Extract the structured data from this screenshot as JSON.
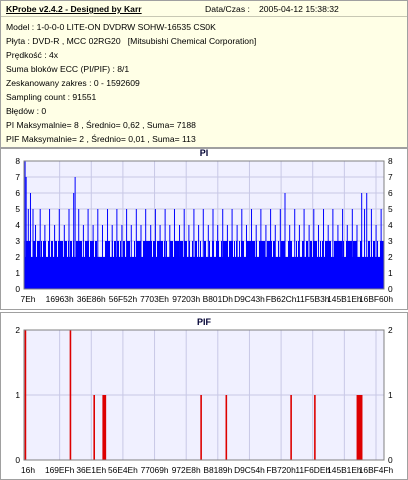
{
  "header": {
    "app_title": "KProbe v2.4.2 - Designed by Karr",
    "date_label": "Data/Czas :",
    "date_value": "2005-04-12 15:38:32"
  },
  "info_lines": [
    "Model : 1-0-0-0 LITE-ON DVDRW SOHW-16535 CS0K",
    "Płyta : DVD-R , MCC 02RG20   [Mitsubishi Chemical Corporation]",
    "Prędkość : 4x",
    "Suma bloków ECC (PI/PIF) : 8/1",
    "Zeskanowany zakres : 0 - 1592609",
    "Sampling count : 91551",
    "Błędów : 0",
    "PI Maksymalnie= 8 , Średnio= 0,62 , Suma= 7188",
    "PIF Maksymalnie= 2 , Średnio= 0,01 , Suma= 113"
  ],
  "colors": {
    "plot_background": "#f0f0ff",
    "grid": "#c8c8e6",
    "pi_bars": "#0000ff",
    "pif_bars": "#dd0000"
  },
  "chart_data": [
    {
      "type": "bar",
      "title": "PI",
      "ylim": [
        0,
        8
      ],
      "y_ticks": [
        "0",
        "1",
        "2",
        "3",
        "4",
        "5",
        "6",
        "7",
        "8"
      ],
      "x_tick_labels": [
        "7Eh",
        "16963h",
        "36E86h",
        "56F52h",
        "7703Eh",
        "97203h",
        "B801Dh",
        "D9C43h",
        "FB62Ch",
        "11F5B3h",
        "145B1Eh",
        "16BF60h"
      ],
      "grid": true,
      "baseline_level": 2,
      "frequent_level": 3,
      "peaks": [
        {
          "x": 0.003,
          "value": 8
        },
        {
          "x": 0.006,
          "value": 7
        },
        {
          "x": 0.012,
          "value": 5
        },
        {
          "x": 0.018,
          "value": 6
        },
        {
          "x": 0.025,
          "value": 5
        },
        {
          "x": 0.032,
          "value": 4
        },
        {
          "x": 0.045,
          "value": 5
        },
        {
          "x": 0.058,
          "value": 4
        },
        {
          "x": 0.071,
          "value": 5
        },
        {
          "x": 0.085,
          "value": 4
        },
        {
          "x": 0.098,
          "value": 5
        },
        {
          "x": 0.112,
          "value": 4
        },
        {
          "x": 0.125,
          "value": 5
        },
        {
          "x": 0.138,
          "value": 6
        },
        {
          "x": 0.142,
          "value": 7
        },
        {
          "x": 0.152,
          "value": 5
        },
        {
          "x": 0.165,
          "value": 4
        },
        {
          "x": 0.178,
          "value": 5
        },
        {
          "x": 0.192,
          "value": 4
        },
        {
          "x": 0.205,
          "value": 5
        },
        {
          "x": 0.218,
          "value": 4
        },
        {
          "x": 0.232,
          "value": 5
        },
        {
          "x": 0.245,
          "value": 4
        },
        {
          "x": 0.258,
          "value": 5
        },
        {
          "x": 0.272,
          "value": 4
        },
        {
          "x": 0.285,
          "value": 5
        },
        {
          "x": 0.298,
          "value": 4
        },
        {
          "x": 0.312,
          "value": 5
        },
        {
          "x": 0.325,
          "value": 4
        },
        {
          "x": 0.338,
          "value": 5
        },
        {
          "x": 0.352,
          "value": 4
        },
        {
          "x": 0.365,
          "value": 5
        },
        {
          "x": 0.378,
          "value": 4
        },
        {
          "x": 0.392,
          "value": 5
        },
        {
          "x": 0.405,
          "value": 4
        },
        {
          "x": 0.418,
          "value": 5
        },
        {
          "x": 0.432,
          "value": 4
        },
        {
          "x": 0.445,
          "value": 5
        },
        {
          "x": 0.458,
          "value": 4
        },
        {
          "x": 0.472,
          "value": 5
        },
        {
          "x": 0.485,
          "value": 4
        },
        {
          "x": 0.498,
          "value": 5
        },
        {
          "x": 0.512,
          "value": 4
        },
        {
          "x": 0.525,
          "value": 5
        },
        {
          "x": 0.538,
          "value": 4
        },
        {
          "x": 0.552,
          "value": 5
        },
        {
          "x": 0.565,
          "value": 4
        },
        {
          "x": 0.578,
          "value": 5
        },
        {
          "x": 0.592,
          "value": 4
        },
        {
          "x": 0.605,
          "value": 5
        },
        {
          "x": 0.618,
          "value": 4
        },
        {
          "x": 0.632,
          "value": 5
        },
        {
          "x": 0.645,
          "value": 4
        },
        {
          "x": 0.658,
          "value": 5
        },
        {
          "x": 0.672,
          "value": 4
        },
        {
          "x": 0.685,
          "value": 5
        },
        {
          "x": 0.698,
          "value": 4
        },
        {
          "x": 0.712,
          "value": 5
        },
        {
          "x": 0.725,
          "value": 6
        },
        {
          "x": 0.738,
          "value": 4
        },
        {
          "x": 0.752,
          "value": 5
        },
        {
          "x": 0.765,
          "value": 4
        },
        {
          "x": 0.778,
          "value": 5
        },
        {
          "x": 0.792,
          "value": 4
        },
        {
          "x": 0.805,
          "value": 5
        },
        {
          "x": 0.818,
          "value": 4
        },
        {
          "x": 0.832,
          "value": 5
        },
        {
          "x": 0.845,
          "value": 4
        },
        {
          "x": 0.858,
          "value": 5
        },
        {
          "x": 0.872,
          "value": 4
        },
        {
          "x": 0.885,
          "value": 5
        },
        {
          "x": 0.898,
          "value": 4
        },
        {
          "x": 0.912,
          "value": 5
        },
        {
          "x": 0.925,
          "value": 4
        },
        {
          "x": 0.938,
          "value": 6
        },
        {
          "x": 0.946,
          "value": 5
        },
        {
          "x": 0.952,
          "value": 6
        },
        {
          "x": 0.965,
          "value": 5
        },
        {
          "x": 0.978,
          "value": 4
        },
        {
          "x": 0.992,
          "value": 5
        }
      ]
    },
    {
      "type": "bar",
      "title": "PIF",
      "ylim": [
        0,
        2
      ],
      "y_ticks": [
        "0",
        "1",
        "2"
      ],
      "x_tick_labels": [
        "16h",
        "169EFh",
        "36E1Eh",
        "56E4Eh",
        "77069h",
        "972E8h",
        "B8189h",
        "D9C54h",
        "FB720h",
        "11F6DEh",
        "145B1Eh",
        "16BF4Fh"
      ],
      "grid": true,
      "points": [
        {
          "x": 0.004,
          "value": 2
        },
        {
          "x": 0.129,
          "value": 2
        },
        {
          "x": 0.195,
          "value": 1
        },
        {
          "x": 0.22,
          "value": 1
        },
        {
          "x": 0.223,
          "value": 1
        },
        {
          "x": 0.226,
          "value": 1
        },
        {
          "x": 0.492,
          "value": 1
        },
        {
          "x": 0.562,
          "value": 1
        },
        {
          "x": 0.742,
          "value": 1
        },
        {
          "x": 0.808,
          "value": 1
        },
        {
          "x": 0.926,
          "value": 1
        },
        {
          "x": 0.93,
          "value": 1
        },
        {
          "x": 0.934,
          "value": 1
        },
        {
          "x": 0.938,
          "value": 1
        }
      ]
    }
  ]
}
